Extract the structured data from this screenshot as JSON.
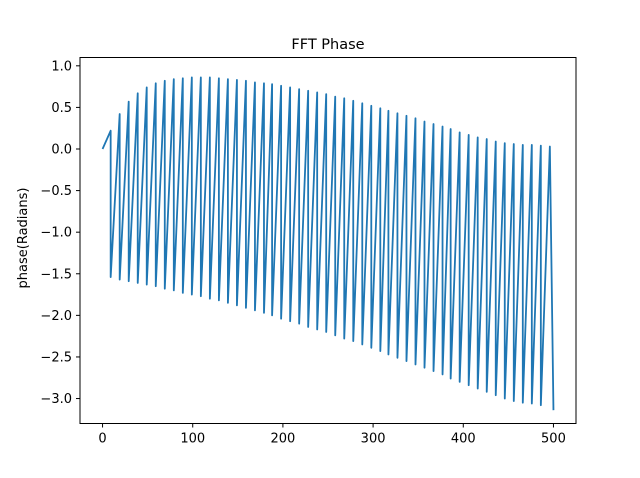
{
  "chart_data": {
    "type": "line",
    "title": "FFT Phase",
    "xlabel": "",
    "ylabel": "phase(Radians)",
    "xlim": [
      -25,
      525
    ],
    "ylim": [
      -3.3,
      1.1
    ],
    "x_ticks": [
      0,
      100,
      200,
      300,
      400,
      500
    ],
    "x_tick_labels": [
      "0",
      "100",
      "200",
      "300",
      "400",
      "500"
    ],
    "y_ticks": [
      1.0,
      0.5,
      0.0,
      -0.5,
      -1.0,
      -1.5,
      -2.0,
      -2.5,
      -3.0
    ],
    "y_tick_labels": [
      "1.0",
      "0.5",
      "0.0",
      "−0.5",
      "−1.0",
      "−1.5",
      "−2.0",
      "−2.5",
      "−3.0"
    ],
    "grid": false,
    "legend": "none",
    "series": [
      {
        "color": "#1f77b4",
        "description_points": "sawtooth phase: ramps up then wraps down every ~9.8 samples",
        "x": [
          0,
          9,
          9.01,
          19,
          19.01,
          29,
          29.01,
          39,
          39.01,
          49,
          49.01,
          59,
          59.01,
          69,
          69.01,
          79,
          79.01,
          89,
          89.01,
          99,
          99.01,
          109,
          109.01,
          119,
          119.01,
          129,
          129.01,
          139,
          139.01,
          149,
          149.01,
          159,
          159.01,
          169,
          169.01,
          179,
          179.01,
          188,
          188.01,
          198,
          198.01,
          208,
          208.01,
          218,
          218.01,
          228,
          228.01,
          238,
          238.01,
          248,
          248.01,
          258,
          258.01,
          268,
          268.01,
          278,
          278.01,
          288,
          288.01,
          298,
          298.01,
          308,
          308.01,
          317,
          317.01,
          327,
          327.01,
          337,
          337.01,
          347,
          347.01,
          357,
          357.01,
          367,
          367.01,
          377,
          377.01,
          386,
          386.01,
          396,
          396.01,
          406,
          406.01,
          416,
          416.01,
          426,
          426.01,
          436,
          436.01,
          446,
          446.01,
          456,
          456.01,
          466,
          466.01,
          476,
          476.01,
          486,
          486.01,
          496,
          500
        ],
        "y": [
          0.0,
          0.22,
          -1.54,
          0.42,
          -1.57,
          0.57,
          -1.59,
          0.67,
          -1.61,
          0.74,
          -1.63,
          0.79,
          -1.65,
          0.82,
          -1.68,
          0.84,
          -1.7,
          0.85,
          -1.73,
          0.86,
          -1.75,
          0.86,
          -1.77,
          0.86,
          -1.8,
          0.85,
          -1.82,
          0.84,
          -1.85,
          0.83,
          -1.88,
          0.82,
          -1.91,
          0.8,
          -1.94,
          0.79,
          -1.97,
          0.78,
          -2.0,
          0.76,
          -2.04,
          0.74,
          -2.07,
          0.72,
          -2.1,
          0.7,
          -2.14,
          0.68,
          -2.17,
          0.66,
          -2.2,
          0.63,
          -2.24,
          0.61,
          -2.28,
          0.58,
          -2.31,
          0.55,
          -2.35,
          0.52,
          -2.39,
          0.49,
          -2.43,
          0.46,
          -2.47,
          0.43,
          -2.51,
          0.4,
          -2.55,
          0.37,
          -2.59,
          0.33,
          -2.63,
          0.3,
          -2.67,
          0.27,
          -2.71,
          0.24,
          -2.76,
          0.2,
          -2.8,
          0.17,
          -2.84,
          0.14,
          -2.88,
          0.12,
          -2.92,
          0.09,
          -2.96,
          0.07,
          -3.0,
          0.06,
          -3.03,
          0.05,
          -3.05,
          0.05,
          -3.06,
          0.04,
          -3.08,
          0.03,
          -3.14
        ]
      }
    ]
  }
}
